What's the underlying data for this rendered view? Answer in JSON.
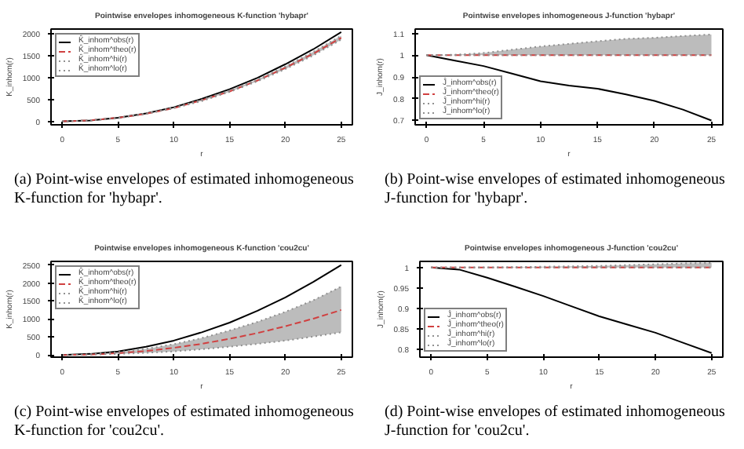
{
  "chart_data": [
    {
      "type": "line",
      "title": "Pointwise envelopes inhomogeneous K-function 'hybapr'",
      "xlabel": "r",
      "ylabel": "K_inhom(r)",
      "x": [
        0,
        2.5,
        5,
        7.5,
        10,
        12.5,
        15,
        17.5,
        20,
        22.5,
        25
      ],
      "xlim": [
        -1,
        26
      ],
      "ylim": [
        -80,
        2100
      ],
      "xticks": [
        0,
        5,
        10,
        15,
        20,
        25
      ],
      "yticks": [
        0,
        500,
        1000,
        1500,
        2000
      ],
      "legend": "top left",
      "grid": false,
      "annotations": [
        "(a) Point-wise envelopes of estimated inhomogeneous K-function for 'hybapr'."
      ],
      "series": [
        {
          "name": "K̂_inhom^obs(r)",
          "color": "#000000",
          "line_style": "solid",
          "values": [
            0,
            20,
            80,
            180,
            320,
            510,
            730,
            990,
            1300,
            1640,
            2030
          ]
        },
        {
          "name": "K̂_inhom^theo(r)",
          "color": "#d04040",
          "line_style": "dashed",
          "values": [
            0,
            20,
            80,
            170,
            300,
            480,
            680,
            930,
            1220,
            1540,
            1900
          ]
        },
        {
          "name": "K̂_inhom^hi(r)",
          "color": "#909090",
          "line_style": "dotted",
          "values": [
            0,
            20,
            80,
            180,
            310,
            490,
            700,
            950,
            1250,
            1580,
            1950
          ],
          "lower": [
            0,
            20,
            70,
            170,
            300,
            460,
            670,
            910,
            1190,
            1500,
            1860
          ],
          "upper": [
            0,
            20,
            80,
            180,
            310,
            490,
            700,
            950,
            1250,
            1580,
            1950
          ]
        },
        {
          "name": "K̂_inhom^lo(r)",
          "color": "#909090",
          "line_style": "dotted",
          "values": [
            0,
            20,
            70,
            170,
            300,
            460,
            670,
            910,
            1190,
            1500,
            1860
          ]
        }
      ]
    },
    {
      "type": "line",
      "title": "Pointwise envelopes inhomogeneous J-function 'hybapr'",
      "xlabel": "r",
      "ylabel": "J_inhom(r)",
      "x": [
        0,
        2.5,
        5,
        7.5,
        10,
        12.5,
        15,
        17.5,
        20,
        22.5,
        25
      ],
      "xlim": [
        -1,
        26
      ],
      "ylim": [
        0.68,
        1.12
      ],
      "xticks": [
        0,
        5,
        10,
        15,
        20,
        25
      ],
      "yticks": [
        0.7,
        0.8,
        0.9,
        1.0,
        1.1
      ],
      "legend": "bottom left",
      "grid": false,
      "annotations": [
        "(b) Point-wise envelopes of estimated inhomogeneous J-function for 'hybapr'."
      ],
      "series": [
        {
          "name": "Ĵ_inhom^obs(r)",
          "color": "#000000",
          "line_style": "solid",
          "values": [
            1.0,
            0.975,
            0.95,
            0.915,
            0.88,
            0.86,
            0.846,
            0.82,
            0.79,
            0.75,
            0.7
          ]
        },
        {
          "name": "Ĵ_inhom^theo(r)",
          "color": "#d04040",
          "line_style": "dashed",
          "values": [
            1.0,
            1.0,
            1.0,
            1.0,
            1.0,
            1.0,
            1.0,
            1.0,
            1.0,
            1.0,
            1.0
          ]
        },
        {
          "name": "Ĵ_inhom^hi(r)",
          "color": "#909090",
          "line_style": "dotted",
          "values": [
            1.0,
            1.002,
            1.01,
            1.025,
            1.04,
            1.052,
            1.064,
            1.075,
            1.08,
            1.088,
            1.095
          ],
          "lower": [
            1.0,
            1.0,
            1.0,
            1.0,
            1.0,
            1.0,
            1.0,
            1.0,
            1.0,
            1.0,
            1.0
          ],
          "upper": [
            1.0,
            1.002,
            1.01,
            1.025,
            1.04,
            1.052,
            1.064,
            1.075,
            1.08,
            1.088,
            1.095
          ]
        },
        {
          "name": "Ĵ_inhom^lo(r)",
          "color": "#909090",
          "line_style": "dotted",
          "values": [
            1.0,
            1.0,
            1.0,
            1.0,
            1.0,
            1.0,
            1.0,
            1.0,
            1.0,
            1.0,
            1.0
          ]
        }
      ]
    },
    {
      "type": "line",
      "title": "Pointwise envelopes inhomogeneous K-function 'cou2cu'",
      "xlabel": "r",
      "ylabel": "K_inhom(r)",
      "x": [
        0,
        2.5,
        5,
        7.5,
        10,
        12.5,
        15,
        17.5,
        20,
        22.5,
        25
      ],
      "xlim": [
        -1,
        26
      ],
      "ylim": [
        -60,
        2600
      ],
      "xticks": [
        0,
        5,
        10,
        15,
        20,
        25
      ],
      "yticks": [
        0,
        500,
        1000,
        1500,
        2000,
        2500
      ],
      "legend": "top left",
      "grid": false,
      "annotations": [
        "(c) Point-wise envelopes of estimated inhomogeneous K-function for 'cou2cu'."
      ],
      "series": [
        {
          "name": "K̂_inhom^obs(r)",
          "color": "#000000",
          "line_style": "solid",
          "values": [
            0,
            30,
            100,
            230,
            400,
            630,
            900,
            1230,
            1600,
            2030,
            2500
          ]
        },
        {
          "name": "K̂_inhom^theo(r)",
          "color": "#d04040",
          "line_style": "dashed",
          "values": [
            0,
            10,
            50,
            110,
            200,
            310,
            450,
            610,
            800,
            1010,
            1250
          ]
        },
        {
          "name": "K̂_inhom^hi(r)",
          "color": "#909090",
          "line_style": "dotted",
          "values": [
            0,
            20,
            80,
            170,
            300,
            470,
            680,
            920,
            1200,
            1520,
            1900
          ],
          "lower": [
            0,
            10,
            30,
            60,
            100,
            160,
            230,
            310,
            400,
            510,
            630
          ],
          "upper": [
            0,
            20,
            80,
            170,
            300,
            470,
            680,
            920,
            1200,
            1520,
            1900
          ]
        },
        {
          "name": "K̂_inhom^lo(r)",
          "color": "#909090",
          "line_style": "dotted",
          "values": [
            0,
            10,
            30,
            60,
            100,
            160,
            230,
            310,
            400,
            510,
            630
          ]
        }
      ]
    },
    {
      "type": "line",
      "title": "Pointwise envelopes inhomogeneous J-function 'cou2cu'",
      "xlabel": "r",
      "ylabel": "J_inhom(r)",
      "x": [
        0,
        2.5,
        5,
        7.5,
        10,
        12.5,
        15,
        17.5,
        20,
        22.5,
        25
      ],
      "xlim": [
        -1,
        26
      ],
      "ylim": [
        0.78,
        1.015
      ],
      "xticks": [
        0,
        5,
        10,
        15,
        20,
        25
      ],
      "yticks": [
        0.8,
        0.85,
        0.9,
        0.95,
        1.0
      ],
      "legend": "bottom left",
      "grid": false,
      "annotations": [
        "(d) Point-wise envelopes of estimated inhomogeneous J-function for 'cou2cu'."
      ],
      "series": [
        {
          "name": "Ĵ_inhom^obs(r)",
          "color": "#000000",
          "line_style": "solid",
          "values": [
            1.0,
            0.995,
            0.975,
            0.953,
            0.93,
            0.905,
            0.88,
            0.86,
            0.84,
            0.815,
            0.79
          ]
        },
        {
          "name": "Ĵ_inhom^theo(r)",
          "color": "#d04040",
          "line_style": "dashed",
          "values": [
            1.0,
            1.0,
            1.0,
            1.0,
            1.0,
            1.0,
            1.0,
            1.0,
            1.0,
            1.0,
            1.0
          ]
        },
        {
          "name": "Ĵ_inhom^hi(r)",
          "color": "#909090",
          "line_style": "dotted",
          "values": [
            1.0,
            1.0,
            1.0,
            1.001,
            1.002,
            1.003,
            1.004,
            1.006,
            1.008,
            1.01,
            1.011
          ],
          "lower": [
            1.0,
            1.0,
            1.0,
            1.0,
            1.0,
            1.0,
            1.0,
            1.0,
            1.0,
            1.0,
            1.0
          ],
          "upper": [
            1.0,
            1.0,
            1.0,
            1.001,
            1.002,
            1.003,
            1.004,
            1.006,
            1.008,
            1.01,
            1.011
          ]
        },
        {
          "name": "Ĵ_inhom^lo(r)",
          "color": "#909090",
          "line_style": "dotted",
          "values": [
            1.0,
            1.0,
            1.0,
            1.0,
            1.0,
            1.0,
            1.0,
            1.0,
            1.0,
            1.0,
            1.0
          ]
        }
      ]
    }
  ]
}
